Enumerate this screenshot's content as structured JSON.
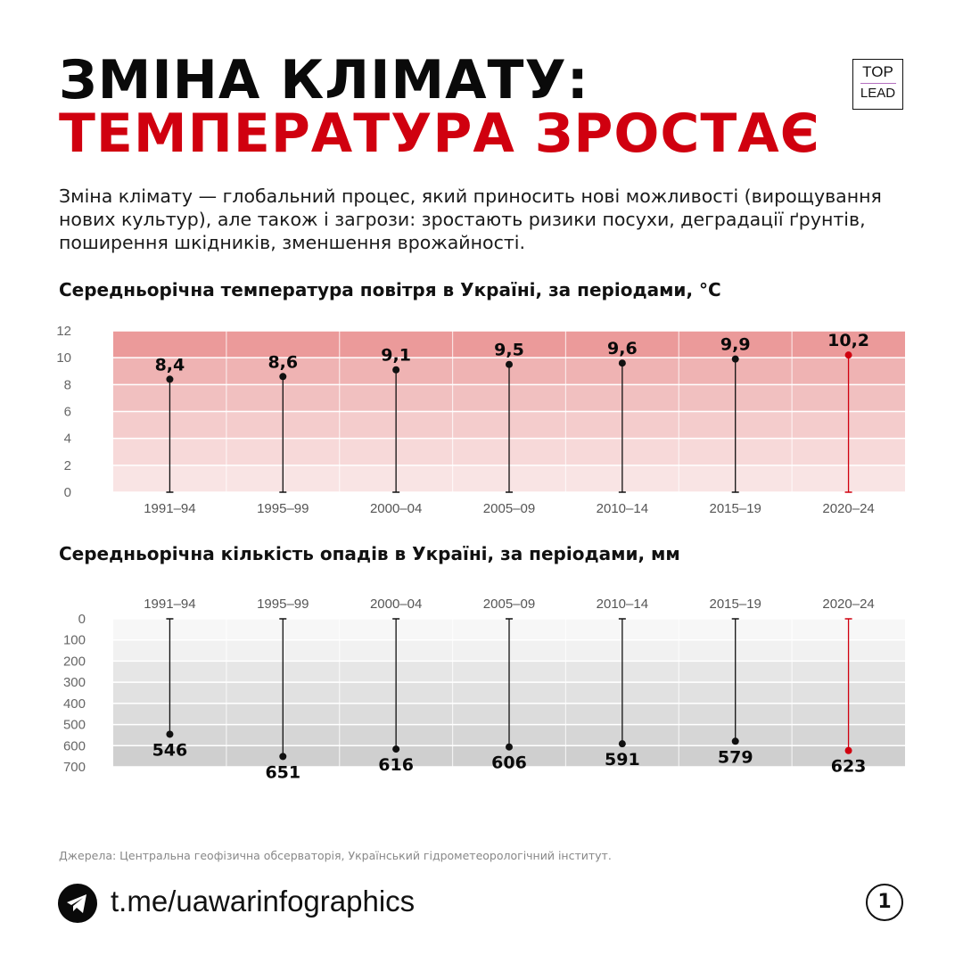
{
  "header": {
    "title_line1": "ЗМІНА КЛІМАТУ:",
    "title_line2": "ТЕМПЕРАТУРА ЗРОСТАЄ",
    "logo_top": "TOP",
    "logo_bottom": "LEAD"
  },
  "intro": "Зміна клімату — глобальний процес, який приносить нові можливості (вирощування нових культур), але також і загрози: зростають ризики посухи, деградації ґрунтів, поширення шкідників, зменшення врожайності.",
  "colors": {
    "accent": "#d0000f",
    "dark": "#0a0a0a"
  },
  "chart_data": [
    {
      "type": "lollipop",
      "title": "Середньорічна температура повітря в Україні, за періодами, °C",
      "categories": [
        "1991–94",
        "1995–99",
        "2000–04",
        "2005–09",
        "2010–14",
        "2015–19",
        "2020–24"
      ],
      "values": [
        8.4,
        8.6,
        9.1,
        9.5,
        9.6,
        9.9,
        10.2
      ],
      "labels": [
        "8,4",
        "8,6",
        "9,1",
        "9,5",
        "9,6",
        "9,9",
        "10,2"
      ],
      "yticks": [
        "0",
        "2",
        "4",
        "6",
        "8",
        "10",
        "12"
      ],
      "ylim": [
        0,
        12
      ],
      "highlight_index": 6,
      "band_colors": [
        "#f9e4e4",
        "#f7d9d9",
        "#f4cccc",
        "#f1c0c0",
        "#efb3b3",
        "#eb9a9a"
      ]
    },
    {
      "type": "lollipop",
      "title": "Середньорічна кількість опадів в Україні, за періодами, мм",
      "categories": [
        "1991–94",
        "1995–99",
        "2000–04",
        "2005–09",
        "2010–14",
        "2015–19",
        "2020–24"
      ],
      "values": [
        546,
        651,
        616,
        606,
        591,
        579,
        623
      ],
      "labels": [
        "546",
        "651",
        "616",
        "606",
        "591",
        "579",
        "623"
      ],
      "yticks": [
        "0",
        "100",
        "200",
        "300",
        "400",
        "500",
        "600",
        "700"
      ],
      "ylim": [
        0,
        700
      ],
      "y_inverted": true,
      "highlight_index": 6,
      "band_colors": [
        "#f7f7f7",
        "#f1f1f1",
        "#e6e6e6",
        "#e1e1e1",
        "#dcdcdc",
        "#d6d6d6",
        "#cfcfcf"
      ]
    }
  ],
  "footer": {
    "source": "Джерела: Центральна геофізична обсерваторія, Український гідрометеорологічний інститут.",
    "link": "t.me/uawarinfographics",
    "page_number": "1",
    "icon": "telegram-icon"
  }
}
